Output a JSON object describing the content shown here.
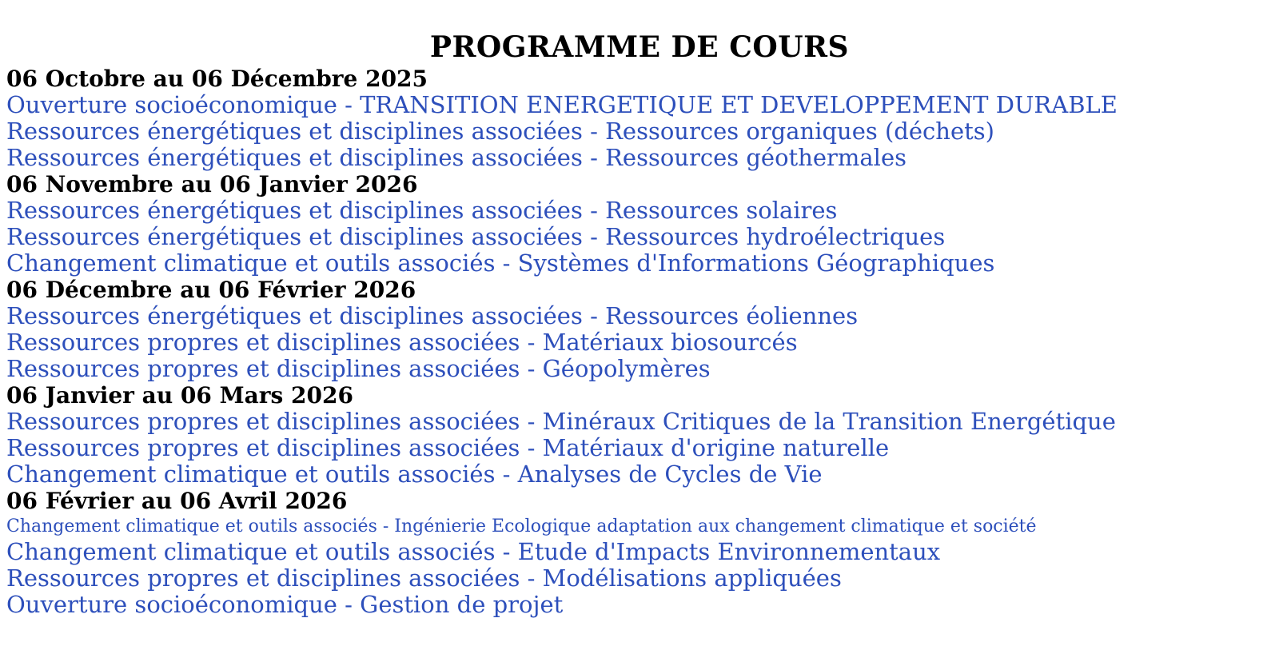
{
  "page": {
    "title": "PROGRAMME DE COURS"
  },
  "colors": {
    "link": "#2d4fbb",
    "heading": "#000000",
    "background": "#ffffff"
  },
  "sections": [
    {
      "heading": "06 Octobre au 06 Décembre 2025",
      "courses": [
        "Ouverture socioéconomique - TRANSITION ENERGETIQUE ET DEVELOPPEMENT DURABLE",
        "Ressources énergétiques et disciplines associées - Ressources organiques (déchets)",
        "Ressources énergétiques et disciplines associées - Ressources géothermales"
      ]
    },
    {
      "heading": "06 Novembre au 06 Janvier 2026",
      "courses": [
        "Ressources énergétiques et disciplines associées - Ressources solaires",
        "Ressources énergétiques et disciplines associées - Ressources hydroélectriques",
        "Changement climatique et outils associés - Systèmes d'Informations Géographiques"
      ]
    },
    {
      "heading": "06 Décembre au 06 Février 2026",
      "courses": [
        "Ressources énergétiques et disciplines associées - Ressources éoliennes",
        "Ressources propres et disciplines associées - Matériaux biosourcés",
        "Ressources propres et disciplines associées - Géopolymères"
      ]
    },
    {
      "heading": "06 Janvier au 06 Mars 2026",
      "courses": [
        "Ressources propres et disciplines associées - Minéraux Critiques de la Transition Energétique",
        "Ressources propres et disciplines associées - Matériaux d'origine naturelle",
        "Changement climatique et outils associés - Analyses de Cycles de Vie"
      ]
    },
    {
      "heading": "06 Février au 06 Avril 2026",
      "courses": [
        "Changement climatique et outils associés - Ingénierie Ecologique adaptation aux changement climatique et société",
        "Changement climatique et outils associés - Etude d'Impacts Environnementaux",
        "Ressources propres et disciplines associées - Modélisations appliquées",
        "Ouverture socioéconomique - Gestion de projet"
      ]
    }
  ]
}
